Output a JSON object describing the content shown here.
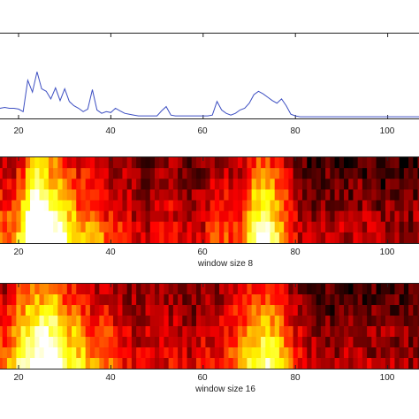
{
  "colors": {
    "line": "#3d4fc2",
    "axis": "#222222",
    "colormap": "hot"
  },
  "chart_data": [
    {
      "type": "line",
      "title": "",
      "xlabel": "",
      "ylabel": "",
      "xlim": [
        5,
        107
      ],
      "ylim": [
        0,
        1
      ],
      "grid": false,
      "x_ticks": [
        "20",
        "40",
        "60",
        "80",
        "100"
      ],
      "x": [
        5,
        6,
        7,
        8,
        9,
        10,
        11,
        12,
        13,
        14,
        15,
        16,
        17,
        18,
        19,
        20,
        21,
        22,
        23,
        24,
        25,
        26,
        27,
        28,
        29,
        30,
        31,
        32,
        33,
        34,
        35,
        36,
        37,
        38,
        39,
        40,
        41,
        42,
        43,
        44,
        45,
        46,
        47,
        48,
        49,
        50,
        51,
        52,
        53,
        54,
        55,
        56,
        57,
        58,
        59,
        60,
        61,
        62,
        63,
        64,
        65,
        66,
        67,
        68,
        69,
        70,
        71,
        72,
        73,
        74,
        75,
        76,
        77,
        78,
        79,
        80,
        81,
        82,
        83,
        84,
        85,
        86,
        87,
        88,
        89,
        90,
        91,
        92,
        93,
        94,
        95,
        96,
        97,
        98,
        99,
        100,
        101,
        102,
        103,
        104,
        105,
        106,
        107
      ],
      "series": [
        {
          "values": [
            0.08,
            0.1,
            0.14,
            0.09,
            0.06,
            0.1,
            0.12,
            0.11,
            0.09,
            0.08,
            0.1,
            0.12,
            0.13,
            0.12,
            0.12,
            0.11,
            0.08,
            0.45,
            0.31,
            0.55,
            0.35,
            0.32,
            0.23,
            0.36,
            0.21,
            0.35,
            0.2,
            0.15,
            0.12,
            0.08,
            0.11,
            0.34,
            0.1,
            0.06,
            0.08,
            0.07,
            0.12,
            0.09,
            0.06,
            0.05,
            0.04,
            0.03,
            0.03,
            0.03,
            0.03,
            0.03,
            0.09,
            0.14,
            0.04,
            0.03,
            0.03,
            0.03,
            0.03,
            0.03,
            0.03,
            0.03,
            0.03,
            0.04,
            0.2,
            0.1,
            0.06,
            0.04,
            0.06,
            0.1,
            0.12,
            0.18,
            0.28,
            0.32,
            0.29,
            0.25,
            0.21,
            0.18,
            0.23,
            0.15,
            0.05,
            0.03,
            0.02,
            0.02,
            0.02,
            0.02,
            0.02,
            0.02,
            0.02,
            0.02,
            0.02,
            0.02,
            0.02,
            0.02,
            0.02,
            0.02,
            0.02,
            0.02,
            0.02,
            0.02,
            0.02,
            0.02,
            0.02,
            0.02,
            0.02,
            0.02,
            0.02,
            0.02,
            0.02
          ]
        }
      ]
    },
    {
      "type": "heatmap",
      "title": "",
      "xlabel": "window size 8",
      "ylabel": "",
      "colormap": "hot",
      "xlim": [
        5,
        107
      ],
      "rows": 8,
      "x_ticks": [
        "20",
        "40",
        "60",
        "80",
        "100"
      ]
    },
    {
      "type": "heatmap",
      "title": "",
      "xlabel": "window size 16",
      "ylabel": "",
      "colormap": "hot",
      "xlim": [
        5,
        107
      ],
      "rows": 8,
      "x_ticks": [
        "20",
        "40",
        "60",
        "80",
        "100"
      ]
    }
  ]
}
